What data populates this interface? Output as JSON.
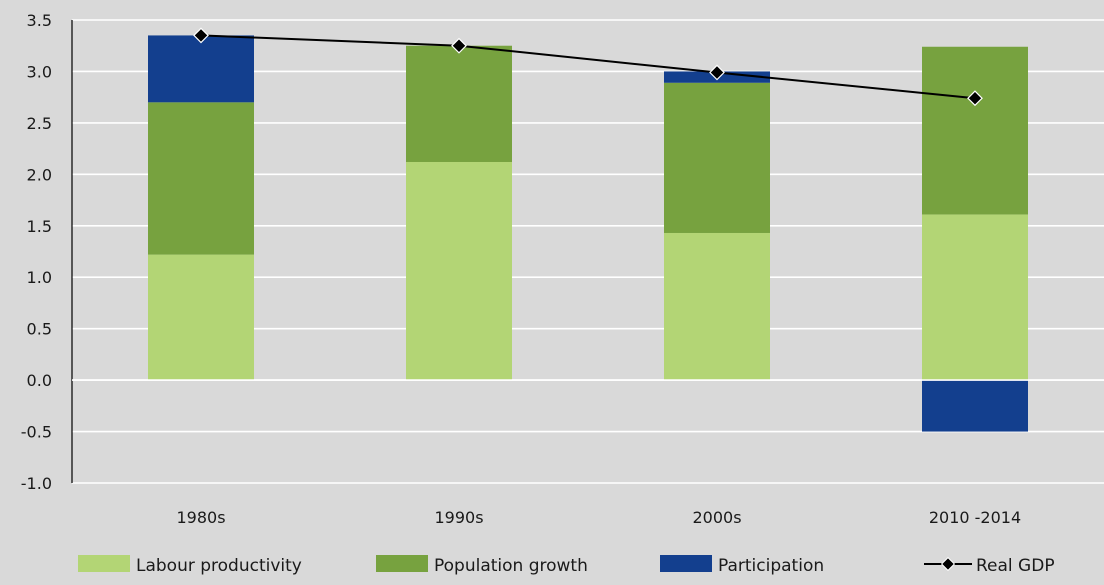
{
  "chart_data": {
    "type": "bar",
    "stacked": true,
    "title": "",
    "xlabel": "",
    "ylabel": "",
    "categories": [
      "1980s",
      "1990s",
      "2000s",
      "2010 -2014"
    ],
    "ylim": [
      -1.0,
      3.5
    ],
    "yticks": [
      "3.5",
      "3.0",
      "2.5",
      "2.0",
      "1.5",
      "1.0",
      "0.5",
      "0.0",
      "-0.5",
      "-1.0"
    ],
    "grid": true,
    "legend_position": "bottom",
    "series": [
      {
        "name": "Labour productivity",
        "kind": "bar",
        "color": "#b3d575",
        "values": [
          1.22,
          2.12,
          1.43,
          1.61
        ]
      },
      {
        "name": "Population growth",
        "kind": "bar",
        "color": "#77a23f",
        "values": [
          1.48,
          1.13,
          1.46,
          1.63
        ]
      },
      {
        "name": "Participation",
        "kind": "bar",
        "color": "#133f8e",
        "values": [
          0.65,
          0.0,
          0.11,
          -0.5
        ]
      },
      {
        "name": "Real GDP",
        "kind": "line",
        "color": "#000000",
        "values": [
          3.35,
          3.25,
          2.99,
          2.74
        ]
      }
    ]
  }
}
